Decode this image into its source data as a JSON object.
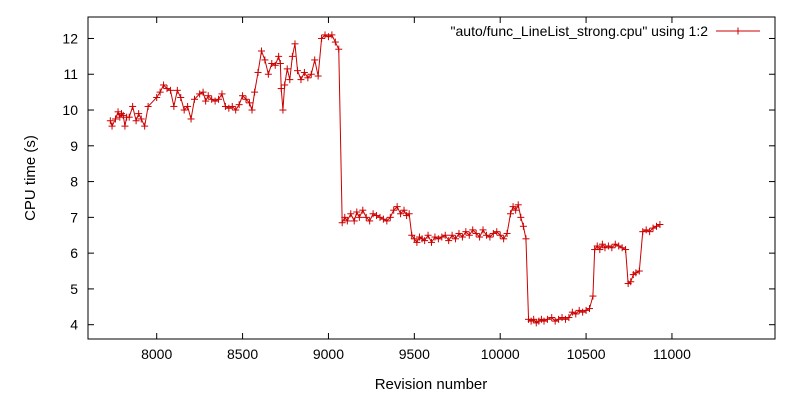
{
  "chart_data": {
    "type": "line",
    "xlabel": "Revision number",
    "ylabel": "CPU time (s)",
    "xlim": [
      7600,
      11600
    ],
    "ylim": [
      3.6,
      12.6
    ],
    "xticks": [
      8000,
      8500,
      9000,
      9500,
      10000,
      10500,
      11000
    ],
    "xtick_labels": [
      "8000",
      "8500",
      "9000",
      "9500",
      "10000",
      "10500",
      "11000"
    ],
    "yticks": [
      4,
      5,
      6,
      7,
      8,
      9,
      10,
      11,
      12
    ],
    "ytick_labels": [
      "4",
      "5",
      "6",
      "7",
      "8",
      "9",
      "10",
      "11",
      "12"
    ],
    "legend_position": "top-right",
    "grid": false,
    "series": [
      {
        "name": "\"auto/func_LineList_strong.cpu\" using 1:2",
        "color": "#cc0000",
        "marker": "plus",
        "points": [
          [
            7730,
            9.7
          ],
          [
            7740,
            9.55
          ],
          [
            7760,
            9.75
          ],
          [
            7775,
            9.95
          ],
          [
            7785,
            9.8
          ],
          [
            7795,
            9.9
          ],
          [
            7805,
            9.85
          ],
          [
            7815,
            9.55
          ],
          [
            7825,
            9.8
          ],
          [
            7840,
            9.8
          ],
          [
            7860,
            10.1
          ],
          [
            7880,
            9.7
          ],
          [
            7895,
            9.9
          ],
          [
            7910,
            9.75
          ],
          [
            7930,
            9.55
          ],
          [
            7950,
            10.1
          ],
          [
            8000,
            10.35
          ],
          [
            8020,
            10.5
          ],
          [
            8040,
            10.7
          ],
          [
            8060,
            10.6
          ],
          [
            8080,
            10.55
          ],
          [
            8100,
            10.1
          ],
          [
            8120,
            10.55
          ],
          [
            8140,
            10.35
          ],
          [
            8160,
            10.0
          ],
          [
            8180,
            10.1
          ],
          [
            8200,
            9.75
          ],
          [
            8220,
            10.3
          ],
          [
            8250,
            10.45
          ],
          [
            8270,
            10.5
          ],
          [
            8285,
            10.25
          ],
          [
            8300,
            10.4
          ],
          [
            8320,
            10.3
          ],
          [
            8340,
            10.25
          ],
          [
            8360,
            10.3
          ],
          [
            8380,
            10.45
          ],
          [
            8400,
            10.1
          ],
          [
            8420,
            10.05
          ],
          [
            8440,
            10.1
          ],
          [
            8460,
            10.0
          ],
          [
            8480,
            10.15
          ],
          [
            8500,
            10.4
          ],
          [
            8520,
            10.3
          ],
          [
            8540,
            10.2
          ],
          [
            8555,
            10.0
          ],
          [
            8570,
            10.5
          ],
          [
            8590,
            11.05
          ],
          [
            8610,
            11.65
          ],
          [
            8630,
            11.4
          ],
          [
            8650,
            11.0
          ],
          [
            8670,
            11.3
          ],
          [
            8690,
            11.25
          ],
          [
            8710,
            11.5
          ],
          [
            8720,
            11.3
          ],
          [
            8725,
            10.6
          ],
          [
            8735,
            10.0
          ],
          [
            8745,
            10.7
          ],
          [
            8760,
            11.15
          ],
          [
            8775,
            10.85
          ],
          [
            8790,
            11.5
          ],
          [
            8805,
            11.85
          ],
          [
            8820,
            11.1
          ],
          [
            8840,
            10.85
          ],
          [
            8860,
            11.05
          ],
          [
            8880,
            10.9
          ],
          [
            8900,
            11.0
          ],
          [
            8920,
            11.4
          ],
          [
            8940,
            10.95
          ],
          [
            8960,
            12.0
          ],
          [
            8980,
            12.1
          ],
          [
            9000,
            12.05
          ],
          [
            9020,
            12.1
          ],
          [
            9040,
            11.9
          ],
          [
            9060,
            11.7
          ],
          [
            9080,
            6.85
          ],
          [
            9095,
            7.0
          ],
          [
            9110,
            6.9
          ],
          [
            9130,
            7.1
          ],
          [
            9150,
            6.9
          ],
          [
            9165,
            7.15
          ],
          [
            9180,
            7.0
          ],
          [
            9200,
            7.2
          ],
          [
            9220,
            7.0
          ],
          [
            9240,
            6.9
          ],
          [
            9260,
            7.1
          ],
          [
            9280,
            7.05
          ],
          [
            9300,
            7.0
          ],
          [
            9320,
            6.95
          ],
          [
            9340,
            6.9
          ],
          [
            9360,
            7.0
          ],
          [
            9380,
            7.2
          ],
          [
            9400,
            7.3
          ],
          [
            9420,
            7.1
          ],
          [
            9440,
            7.2
          ],
          [
            9455,
            7.05
          ],
          [
            9470,
            7.1
          ],
          [
            9485,
            6.5
          ],
          [
            9500,
            6.4
          ],
          [
            9515,
            6.3
          ],
          [
            9530,
            6.45
          ],
          [
            9545,
            6.4
          ],
          [
            9560,
            6.35
          ],
          [
            9580,
            6.5
          ],
          [
            9600,
            6.3
          ],
          [
            9620,
            6.45
          ],
          [
            9640,
            6.4
          ],
          [
            9660,
            6.45
          ],
          [
            9680,
            6.5
          ],
          [
            9700,
            6.35
          ],
          [
            9720,
            6.5
          ],
          [
            9740,
            6.4
          ],
          [
            9760,
            6.55
          ],
          [
            9780,
            6.45
          ],
          [
            9800,
            6.6
          ],
          [
            9820,
            6.5
          ],
          [
            9840,
            6.65
          ],
          [
            9860,
            6.55
          ],
          [
            9880,
            6.45
          ],
          [
            9900,
            6.65
          ],
          [
            9920,
            6.5
          ],
          [
            9940,
            6.45
          ],
          [
            9960,
            6.55
          ],
          [
            9980,
            6.6
          ],
          [
            10000,
            6.5
          ],
          [
            10020,
            6.4
          ],
          [
            10040,
            6.55
          ],
          [
            10060,
            7.1
          ],
          [
            10075,
            7.3
          ],
          [
            10090,
            7.2
          ],
          [
            10105,
            7.35
          ],
          [
            10120,
            7.0
          ],
          [
            10135,
            6.75
          ],
          [
            10150,
            6.4
          ],
          [
            10165,
            4.15
          ],
          [
            10180,
            4.1
          ],
          [
            10195,
            4.15
          ],
          [
            10210,
            4.05
          ],
          [
            10225,
            4.1
          ],
          [
            10240,
            4.15
          ],
          [
            10255,
            4.1
          ],
          [
            10275,
            4.15
          ],
          [
            10300,
            4.2
          ],
          [
            10320,
            4.1
          ],
          [
            10340,
            4.15
          ],
          [
            10360,
            4.2
          ],
          [
            10380,
            4.15
          ],
          [
            10400,
            4.2
          ],
          [
            10420,
            4.35
          ],
          [
            10440,
            4.3
          ],
          [
            10460,
            4.4
          ],
          [
            10480,
            4.35
          ],
          [
            10500,
            4.4
          ],
          [
            10520,
            4.45
          ],
          [
            10540,
            4.8
          ],
          [
            10550,
            6.1
          ],
          [
            10565,
            6.2
          ],
          [
            10580,
            6.1
          ],
          [
            10595,
            6.25
          ],
          [
            10610,
            6.15
          ],
          [
            10630,
            6.2
          ],
          [
            10650,
            6.15
          ],
          [
            10670,
            6.25
          ],
          [
            10690,
            6.2
          ],
          [
            10710,
            6.15
          ],
          [
            10730,
            6.1
          ],
          [
            10745,
            5.15
          ],
          [
            10760,
            5.2
          ],
          [
            10775,
            5.4
          ],
          [
            10790,
            5.45
          ],
          [
            10810,
            5.5
          ],
          [
            10830,
            6.6
          ],
          [
            10850,
            6.65
          ],
          [
            10870,
            6.6
          ],
          [
            10890,
            6.7
          ],
          [
            10910,
            6.75
          ],
          [
            10930,
            6.8
          ]
        ]
      }
    ]
  }
}
